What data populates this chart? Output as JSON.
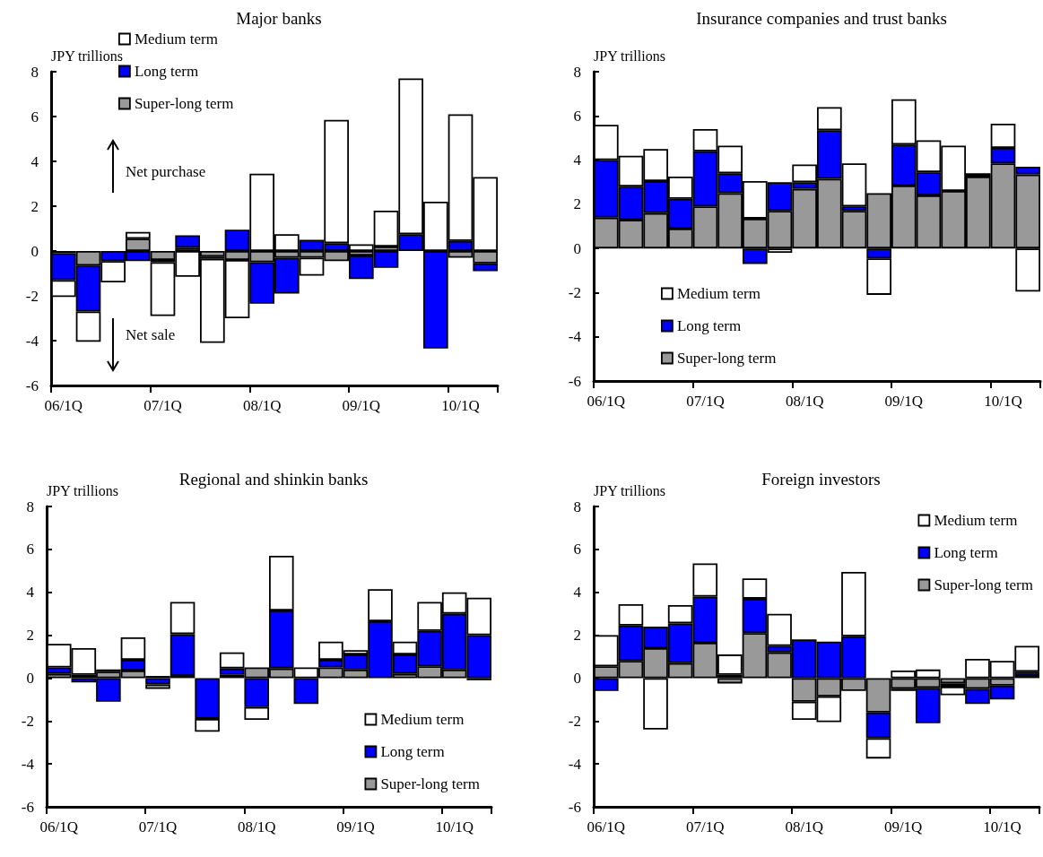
{
  "chart_data": [
    {
      "type": "bar",
      "title": "Major banks",
      "ylabel": "JPY trillions",
      "stacked": true,
      "legend": "top",
      "ylim": [
        -6,
        8
      ],
      "yticks": [
        -6,
        -4,
        -2,
        0,
        2,
        4,
        6,
        8
      ],
      "annotations": [
        "Net purchase",
        "Net sale"
      ],
      "categories": [
        "06/1Q",
        null,
        null,
        null,
        "07/1Q",
        null,
        null,
        null,
        "08/1Q",
        null,
        null,
        null,
        "09/1Q",
        null,
        null,
        null,
        "10/1Q",
        null
      ],
      "series": [
        {
          "name": "Super-long term",
          "color": "#999999",
          "values": [
            -0.1,
            -0.65,
            null,
            0.55,
            -0.4,
            0.15,
            -0.25,
            -0.4,
            -0.5,
            -0.3,
            -0.3,
            -0.45,
            -0.2,
            0.2,
            null,
            null,
            -0.3,
            -0.55
          ]
        },
        {
          "name": "Long term",
          "color": "#0000ff",
          "values": [
            -1.2,
            -2.05,
            -0.45,
            -0.45,
            -0.1,
            0.55,
            -0.1,
            0.95,
            -1.85,
            -1.6,
            0.5,
            0.35,
            -1.05,
            -0.75,
            0.75,
            -4.35,
            0.45,
            -0.35
          ]
        },
        {
          "name": "Medium term",
          "color": "#ffffff",
          "values": [
            -0.75,
            -1.35,
            -0.95,
            0.3,
            -2.4,
            -1.15,
            -3.75,
            -2.6,
            3.45,
            0.75,
            -0.8,
            5.5,
            0.3,
            1.6,
            6.95,
            2.2,
            5.65,
            3.3
          ]
        }
      ]
    },
    {
      "type": "bar",
      "title": "Insurance companies and trust banks",
      "ylabel": "JPY trillions",
      "stacked": true,
      "legend": "bottom left",
      "ylim": [
        -6,
        8
      ],
      "yticks": [
        -6,
        -4,
        -2,
        0,
        2,
        4,
        6,
        8
      ],
      "categories": [
        "06/1Q",
        null,
        null,
        null,
        "07/1Q",
        null,
        null,
        null,
        "08/1Q",
        null,
        null,
        null,
        "09/1Q",
        null,
        null,
        null,
        "10/1Q",
        null
      ],
      "series": [
        {
          "name": "Super-long term",
          "color": "#999999",
          "values": [
            1.4,
            1.3,
            1.6,
            0.9,
            1.9,
            2.5,
            1.35,
            1.7,
            2.7,
            3.15,
            1.7,
            2.5,
            2.85,
            2.4,
            2.6,
            3.25,
            3.85,
            3.35
          ]
        },
        {
          "name": "Long term",
          "color": "#0000ff",
          "values": [
            2.6,
            1.5,
            1.45,
            1.35,
            2.5,
            0.9,
            -0.7,
            1.3,
            0.3,
            2.2,
            0.2,
            -0.45,
            1.85,
            1.05,
            null,
            0.15,
            0.7,
            0.35
          ]
        },
        {
          "name": "Medium term",
          "color": "#ffffff",
          "values": [
            1.6,
            1.4,
            1.45,
            1.0,
            1.0,
            1.25,
            1.7,
            -0.2,
            0.8,
            1.05,
            1.95,
            -1.65,
            2.05,
            1.45,
            2.05,
            null,
            1.1,
            -1.95
          ]
        }
      ]
    },
    {
      "type": "bar",
      "title": "Regional and shinkin banks",
      "ylabel": "JPY trillions",
      "stacked": true,
      "legend": "bottom right",
      "ylim": [
        -6,
        8
      ],
      "yticks": [
        -6,
        -4,
        -2,
        0,
        2,
        4,
        6,
        8
      ],
      "categories": [
        "06/1Q",
        null,
        null,
        null,
        "07/1Q",
        null,
        null,
        null,
        "08/1Q",
        null,
        null,
        null,
        "09/1Q",
        null,
        null,
        null,
        "10/1Q",
        null
      ],
      "series": [
        {
          "name": "Super-long term",
          "color": "#999999",
          "values": [
            0.2,
            0.15,
            0.3,
            0.35,
            0.1,
            0.1,
            null,
            0.15,
            0.5,
            0.45,
            null,
            0.5,
            0.4,
            null,
            0.2,
            0.55,
            0.4,
            -0.1
          ]
        },
        {
          "name": "Long term",
          "color": "#0000ff",
          "values": [
            0.3,
            -0.2,
            -1.1,
            0.5,
            -0.3,
            1.95,
            -1.9,
            0.3,
            -1.35,
            2.7,
            -1.2,
            0.35,
            0.7,
            2.65,
            0.9,
            1.65,
            2.6,
            2.0
          ]
        },
        {
          "name": "Medium term",
          "color": "#ffffff",
          "values": [
            1.1,
            1.25,
            0.1,
            1.05,
            -0.2,
            1.5,
            -0.6,
            0.75,
            -0.6,
            2.55,
            0.5,
            0.85,
            0.2,
            1.5,
            0.6,
            1.35,
            1.0,
            1.75
          ]
        }
      ]
    },
    {
      "type": "bar",
      "title": "Foreign investors",
      "ylabel": "JPY trillions",
      "stacked": true,
      "legend": "top right",
      "ylim": [
        -6,
        8
      ],
      "yticks": [
        -6,
        -4,
        -2,
        0,
        2,
        4,
        6,
        8
      ],
      "categories": [
        "06/1Q",
        null,
        null,
        null,
        "07/1Q",
        null,
        null,
        null,
        "08/1Q",
        null,
        null,
        null,
        "09/1Q",
        null,
        null,
        null,
        "10/1Q",
        null
      ],
      "series": [
        {
          "name": "Super-long term",
          "color": "#999999",
          "values": [
            0.55,
            0.8,
            1.4,
            0.7,
            1.65,
            -0.25,
            2.1,
            1.2,
            -1.1,
            -0.85,
            -0.6,
            -1.6,
            -0.5,
            -0.45,
            -0.25,
            -0.5,
            -0.35,
            0.1
          ]
        },
        {
          "name": "Long term",
          "color": "#0000ff",
          "values": [
            -0.6,
            1.65,
            1.0,
            1.85,
            2.15,
            0.15,
            1.6,
            0.3,
            1.8,
            1.7,
            1.95,
            -1.2,
            -0.1,
            -1.65,
            -0.15,
            -0.7,
            -0.65,
            0.2
          ]
        },
        {
          "name": "Medium term",
          "color": "#ffffff",
          "values": [
            1.45,
            1.0,
            -2.4,
            0.85,
            1.55,
            0.95,
            0.95,
            1.5,
            -0.85,
            -1.2,
            3.0,
            -0.95,
            0.35,
            0.4,
            -0.4,
            0.9,
            0.8,
            1.2
          ]
        }
      ]
    }
  ]
}
